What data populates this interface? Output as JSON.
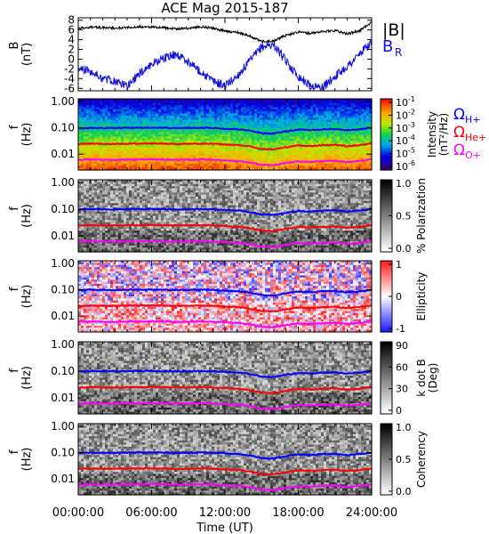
{
  "title": "ACE Mag 2015-187",
  "colors": {
    "b_total": "#000000",
    "b_radial": "#1010e0",
    "omega_h": "#0000ff",
    "omega_he": "#ff0000",
    "omega_o": "#ff00ff"
  },
  "chart_data": [
    {
      "type": "line",
      "panel": "B-field",
      "ylabel_main": "B",
      "ylabel_unit": "(nT)",
      "yticks": [
        "8",
        "6",
        "4",
        "2",
        "0",
        "-2",
        "-4",
        "-6"
      ],
      "ylim": [
        -6.5,
        8.5
      ],
      "legend": [
        {
          "label": "|B|",
          "color": "#000000"
        },
        {
          "label": "B",
          "sub": "R",
          "color": "#1010e0"
        }
      ],
      "series": [
        {
          "key": "b_total",
          "x_hours": [
            0,
            1,
            2,
            3,
            4,
            5,
            6,
            7,
            8,
            9,
            10,
            11,
            12,
            13,
            14,
            15,
            16,
            17,
            18,
            19,
            20,
            21,
            22,
            23,
            24
          ],
          "values": [
            6.3,
            6.6,
            6.5,
            6.4,
            6.5,
            6.7,
            6.6,
            6.5,
            6.2,
            6.4,
            6.7,
            6.4,
            5.8,
            5.5,
            4.8,
            3.6,
            3.8,
            4.9,
            5.6,
            5.3,
            5.7,
            5.9,
            5.2,
            5.8,
            7.6
          ]
        },
        {
          "key": "b_radial",
          "x_hours": [
            0,
            1,
            2,
            3,
            4,
            5,
            6,
            7,
            8,
            9,
            10,
            11,
            12,
            13,
            14,
            15,
            16,
            17,
            18,
            19,
            20,
            21,
            22,
            23,
            24
          ],
          "values": [
            -2.0,
            -2.5,
            -4.0,
            -4.5,
            -5.5,
            -3.0,
            -1.0,
            0.2,
            1.0,
            -0.5,
            -2.5,
            -4.5,
            -5.5,
            -3.5,
            -0.5,
            2.5,
            3.0,
            -0.5,
            -3.5,
            -5.5,
            -5.8,
            -3.5,
            -1.5,
            1.0,
            3.5
          ]
        }
      ]
    },
    {
      "type": "heatmap",
      "panel": "Intensity",
      "ylabel_main": "f",
      "ylabel_unit": "(Hz)",
      "yticks": [
        "1.00",
        "0.10",
        "0.01"
      ],
      "colorbar": {
        "title": "Intensity",
        "unit": "(nT²/Hz)",
        "ticks": [
          "10",
          "10",
          "10",
          "10",
          "10",
          "10"
        ],
        "exponents": [
          "-1",
          "-2",
          "-3",
          "-4",
          "-5",
          "-6"
        ],
        "scale": "rainbow"
      },
      "legend": [
        {
          "label": "Ω",
          "sub": "H+",
          "color": "#0000ff"
        },
        {
          "label": "Ω",
          "sub": "He+",
          "color": "#ff0000"
        },
        {
          "label": "Ω",
          "sub": "O+",
          "color": "#ff00ff"
        }
      ]
    },
    {
      "type": "heatmap",
      "panel": "Polarization",
      "ylabel_main": "f",
      "ylabel_unit": "(Hz)",
      "yticks": [
        "1.00",
        "0.10",
        "0.01"
      ],
      "colorbar": {
        "title": "% Polarization",
        "ticks": [
          "1.0",
          "0.5",
          "0.0"
        ],
        "scale": "gray"
      }
    },
    {
      "type": "heatmap",
      "panel": "Ellipticity",
      "ylabel_main": "f",
      "ylabel_unit": "(Hz)",
      "yticks": [
        "1.00",
        "0.10",
        "0.01"
      ],
      "colorbar": {
        "title": "Ellipticity",
        "ticks": [
          "1",
          "0",
          "-1"
        ],
        "scale": "bluered"
      }
    },
    {
      "type": "heatmap",
      "panel": "k dot B",
      "ylabel_main": "f",
      "ylabel_unit": "(Hz)",
      "yticks": [
        "1.00",
        "0.10",
        "0.01"
      ],
      "colorbar": {
        "title": "k dot B",
        "unit": "(Deg)",
        "ticks": [
          "90",
          "60",
          "30",
          "0"
        ],
        "scale": "gray"
      }
    },
    {
      "type": "heatmap",
      "panel": "Coherency",
      "ylabel_main": "f",
      "ylabel_unit": "(Hz)",
      "yticks": [
        "1.00",
        "0.10",
        "0.01"
      ],
      "colorbar": {
        "title": "Coherency",
        "ticks": [
          "1.0",
          "0.5",
          "0.0"
        ],
        "scale": "gray"
      }
    }
  ],
  "gyro_lines": {
    "x_hours": [
      0,
      1,
      2,
      3,
      4,
      5,
      6,
      7,
      8,
      9,
      10,
      11,
      12,
      13,
      14,
      15,
      16,
      17,
      18,
      19,
      20,
      21,
      22,
      23,
      24
    ],
    "h_hz": [
      0.095,
      0.1,
      0.098,
      0.097,
      0.099,
      0.1,
      0.101,
      0.1,
      0.097,
      0.098,
      0.1,
      0.098,
      0.092,
      0.088,
      0.078,
      0.062,
      0.06,
      0.073,
      0.085,
      0.081,
      0.087,
      0.09,
      0.08,
      0.088,
      0.1
    ],
    "he_hz": [
      0.024,
      0.025,
      0.0245,
      0.0243,
      0.0248,
      0.025,
      0.0253,
      0.025,
      0.0243,
      0.0245,
      0.025,
      0.0245,
      0.023,
      0.022,
      0.0195,
      0.0155,
      0.015,
      0.0183,
      0.0213,
      0.0203,
      0.0218,
      0.0225,
      0.02,
      0.022,
      0.025
    ],
    "o_hz": [
      0.006,
      0.0063,
      0.0061,
      0.0061,
      0.0062,
      0.0063,
      0.0063,
      0.0062,
      0.0061,
      0.0061,
      0.0063,
      0.0061,
      0.0058,
      0.0055,
      0.0049,
      0.0039,
      0.0038,
      0.0046,
      0.0053,
      0.0051,
      0.0054,
      0.0056,
      0.005,
      0.0055,
      0.0063
    ]
  },
  "x_axis": {
    "ticks": [
      "00:00:00",
      "06:00:00",
      "12:00:00",
      "18:00:00",
      "24:00:00"
    ],
    "tick_hours": [
      0,
      6,
      12,
      18,
      24
    ],
    "label": "Time (UT)",
    "range_hours": [
      0,
      24
    ]
  }
}
